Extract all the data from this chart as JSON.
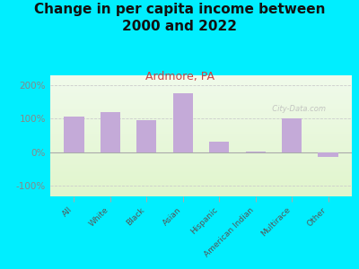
{
  "categories": [
    "All",
    "White",
    "Black",
    "Asian",
    "Hispanic",
    "American Indian",
    "Multirace",
    "Other"
  ],
  "values": [
    105,
    120,
    95,
    175,
    30,
    2,
    100,
    -15
  ],
  "bar_color": "#c4aad8",
  "background_outer": "#00eeff",
  "title": "Change in per capita income between\n2000 and 2022",
  "subtitle": "Ardmore, PA",
  "subtitle_color": "#cc4444",
  "title_color": "#111111",
  "title_fontsize": 11,
  "subtitle_fontsize": 9,
  "ylabel_ticks": [
    "-100%",
    "0%",
    "100%",
    "200%"
  ],
  "ytick_values": [
    -100,
    0,
    100,
    200
  ],
  "ylim": [
    -133,
    230
  ],
  "watermark": "  City-Data.com",
  "plot_bg_topleft": "#d8edd8",
  "plot_bg_bottomright": "#e8f0cc",
  "tick_color": "#888888",
  "ytick_color": "#888888"
}
